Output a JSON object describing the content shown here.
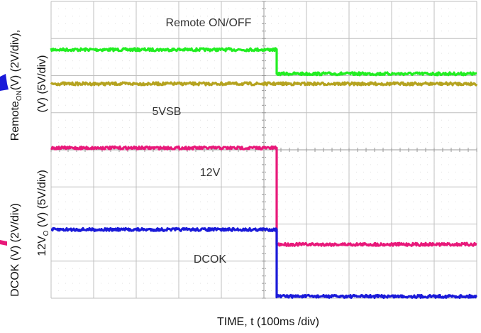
{
  "chart_data": {
    "type": "line",
    "title": "",
    "xlabel": "TIME, t (100ms /div)",
    "ylabels": [
      "Remote_ON(V) (2V/div),",
      "(V) (5V/div)",
      "DCOK (V) (2V/div)",
      "12V_O (V) (5V/div)"
    ],
    "ylabel_parts": {
      "remote_main": "Remote",
      "remote_sub": "ON",
      "remote_rest": "(V) (2V/div),",
      "vsb_line": "(V) (5V/div)",
      "dcok": "DCOK (V) (2V/div)",
      "v12_main": "12V",
      "v12_sub": "O",
      "v12_rest": " (V) (5V/div)"
    },
    "x_divisions": 10,
    "y_divisions": 8,
    "x_range_ms": [
      0,
      1000
    ],
    "transition_time_ms": 530,
    "grid": true,
    "series": [
      {
        "name": "Remote ON/OFF",
        "color": "#22ee22",
        "x": [
          0,
          530,
          530,
          1000
        ],
        "y_div": [
          6.7,
          6.7,
          6.05,
          6.05
        ]
      },
      {
        "name": "5VSB",
        "color": "#b5a320",
        "x": [
          0,
          1000
        ],
        "y_div": [
          5.78,
          5.78
        ]
      },
      {
        "name": "12V",
        "color": "#e8197a",
        "x": [
          0,
          530,
          530,
          1000
        ],
        "y_div": [
          4.05,
          4.05,
          1.45,
          1.45
        ]
      },
      {
        "name": "DCOK",
        "color": "#1a1ad9",
        "x": [
          0,
          530,
          530,
          1000
        ],
        "y_div": [
          1.85,
          1.85,
          0.05,
          0.05
        ]
      }
    ],
    "annotations": [
      "Remote ON/OFF",
      "5VSB",
      "12V",
      "DCOK"
    ]
  }
}
